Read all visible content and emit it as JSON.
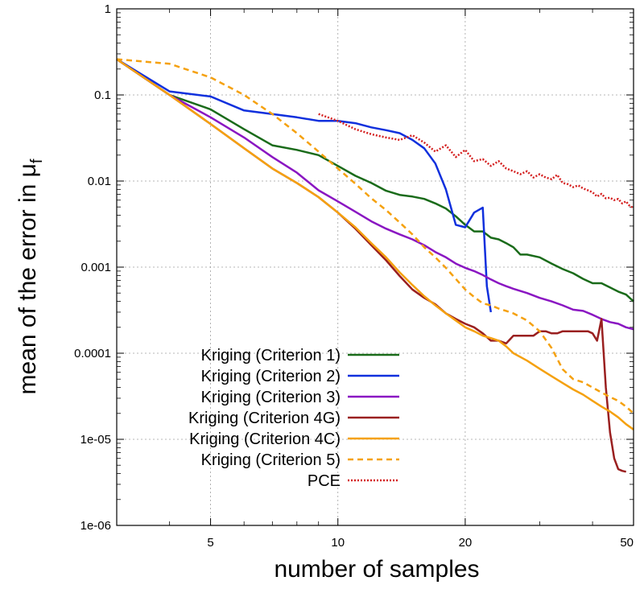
{
  "chart_data": {
    "type": "line",
    "title": "",
    "xlabel": "number of samples",
    "ylabel": "mean of the error in μ",
    "ylabel_subscript": "f",
    "xscale": "log",
    "yscale": "log",
    "xlim": [
      3,
      50
    ],
    "ylim": [
      1e-06,
      1
    ],
    "grid": true,
    "legend_position": "bottom-left",
    "x_ticks": [
      {
        "value": 5,
        "label": "5"
      },
      {
        "value": 10,
        "label": "10"
      },
      {
        "value": 20,
        "label": "20"
      },
      {
        "value": 50,
        "label": "50"
      }
    ],
    "y_ticks": [
      {
        "value": 1,
        "label": "1"
      },
      {
        "value": 0.1,
        "label": "0.1"
      },
      {
        "value": 0.01,
        "label": "0.01"
      },
      {
        "value": 0.001,
        "label": "0.001"
      },
      {
        "value": 0.0001,
        "label": "0.0001"
      },
      {
        "value": 1e-05,
        "label": "1e-05"
      },
      {
        "value": 1e-06,
        "label": "1e-06"
      }
    ],
    "series": [
      {
        "name": "Kriging (Criterion 1)",
        "color": "#1a6b1a",
        "dash": "solid",
        "x": [
          3,
          4,
          5,
          6,
          7,
          8,
          9,
          10,
          11,
          12,
          13,
          14,
          15,
          16,
          17,
          18,
          19,
          20,
          21,
          22,
          23,
          24,
          25,
          26,
          27,
          28,
          30,
          32,
          34,
          36,
          38,
          40,
          42,
          44,
          46,
          48,
          50
        ],
        "y": [
          0.26,
          0.1,
          0.068,
          0.04,
          0.026,
          0.023,
          0.02,
          0.015,
          0.0115,
          0.0095,
          0.0077,
          0.0069,
          0.0066,
          0.0062,
          0.0055,
          0.0048,
          0.0039,
          0.0031,
          0.0026,
          0.0026,
          0.0022,
          0.0021,
          0.0019,
          0.0017,
          0.0014,
          0.0014,
          0.0013,
          0.0011,
          0.00095,
          0.00085,
          0.00073,
          0.00065,
          0.00065,
          0.00058,
          0.00052,
          0.00048,
          0.0004
        ]
      },
      {
        "name": "Kriging (Criterion 2)",
        "color": "#1030dd",
        "dash": "solid",
        "x": [
          3,
          4,
          5,
          6,
          7,
          8,
          9,
          10,
          11,
          12,
          13,
          14,
          15,
          16,
          17,
          18,
          19,
          20,
          21,
          22,
          22.5,
          23
        ],
        "y": [
          0.26,
          0.11,
          0.096,
          0.066,
          0.06,
          0.055,
          0.05,
          0.05,
          0.047,
          0.042,
          0.039,
          0.036,
          0.03,
          0.024,
          0.016,
          0.008,
          0.0031,
          0.0029,
          0.0043,
          0.0049,
          0.0006,
          0.0003
        ]
      },
      {
        "name": "Kriging (Criterion 3)",
        "color": "#8a16c2",
        "dash": "solid",
        "x": [
          3,
          4,
          5,
          6,
          7,
          8,
          9,
          10,
          11,
          12,
          13,
          14,
          15,
          16,
          17,
          18,
          19,
          20,
          21,
          22,
          23,
          24,
          25,
          26,
          28,
          30,
          32,
          34,
          36,
          38,
          40,
          42,
          44,
          46,
          48,
          50
        ],
        "y": [
          0.26,
          0.1,
          0.055,
          0.032,
          0.019,
          0.0125,
          0.0078,
          0.0058,
          0.0044,
          0.0034,
          0.0028,
          0.0024,
          0.0021,
          0.0018,
          0.0015,
          0.0013,
          0.0011,
          0.00098,
          0.0009,
          0.00081,
          0.00072,
          0.00065,
          0.0006,
          0.00056,
          0.0005,
          0.00044,
          0.0004,
          0.00036,
          0.00032,
          0.00031,
          0.00028,
          0.00025,
          0.00023,
          0.00022,
          0.0002,
          0.00019
        ]
      },
      {
        "name": "Kriging (Criterion 4G)",
        "color": "#9a2020",
        "dash": "solid",
        "x": [
          3,
          4,
          5,
          6,
          7,
          8,
          9,
          10,
          11,
          12,
          13,
          14,
          15,
          16,
          17,
          18,
          19,
          20,
          21,
          22,
          23,
          24,
          25,
          26,
          27,
          28,
          29,
          30,
          31,
          32,
          33,
          34,
          35,
          36,
          37,
          38,
          39,
          40,
          41,
          42,
          43,
          44,
          45,
          46,
          47,
          48
        ],
        "y": [
          0.26,
          0.1,
          0.046,
          0.024,
          0.014,
          0.0095,
          0.0065,
          0.0043,
          0.0028,
          0.0018,
          0.0012,
          0.00079,
          0.00055,
          0.00044,
          0.00037,
          0.00029,
          0.00025,
          0.00022,
          0.0002,
          0.00017,
          0.00014,
          0.00014,
          0.00013,
          0.00016,
          0.00016,
          0.00016,
          0.00016,
          0.00018,
          0.00018,
          0.00017,
          0.00017,
          0.00018,
          0.00018,
          0.00018,
          0.00018,
          0.00018,
          0.00018,
          0.00017,
          0.00014,
          0.00025,
          4e-05,
          1.2e-05,
          6e-06,
          4.5e-06,
          4.3e-06,
          4.2e-06
        ]
      },
      {
        "name": "Kriging (Criterion 4C)",
        "color": "#f5a10f",
        "dash": "solid",
        "x": [
          3,
          4,
          5,
          6,
          7,
          8,
          9,
          10,
          11,
          12,
          13,
          14,
          15,
          16,
          17,
          18,
          19,
          20,
          21,
          22,
          23,
          24,
          25,
          26,
          28,
          30,
          32,
          34,
          36,
          38,
          40,
          42,
          44,
          46,
          48,
          50
        ],
        "y": [
          0.26,
          0.1,
          0.046,
          0.024,
          0.014,
          0.0095,
          0.0065,
          0.0043,
          0.0029,
          0.0019,
          0.0013,
          0.00087,
          0.00062,
          0.00046,
          0.00036,
          0.00029,
          0.00024,
          0.0002,
          0.00018,
          0.00016,
          0.00015,
          0.00014,
          0.00012,
          0.0001,
          8.2e-05,
          6.6e-05,
          5.4e-05,
          4.5e-05,
          3.8e-05,
          3.3e-05,
          2.8e-05,
          2.4e-05,
          2.1e-05,
          1.8e-05,
          1.5e-05,
          1.3e-05
        ]
      },
      {
        "name": "Kriging (Criterion 5)",
        "color": "#f5a10f",
        "dash": "dashed",
        "x": [
          3,
          4,
          5,
          6,
          7,
          8,
          9,
          10,
          11,
          12,
          13,
          14,
          15,
          16,
          17,
          18,
          19,
          20,
          21,
          22,
          23,
          24,
          25,
          26,
          28,
          30,
          32,
          34,
          36,
          38,
          40,
          42,
          44,
          46,
          48,
          50
        ],
        "y": [
          0.26,
          0.23,
          0.16,
          0.1,
          0.06,
          0.036,
          0.022,
          0.014,
          0.0093,
          0.0063,
          0.0046,
          0.0033,
          0.0024,
          0.0017,
          0.0013,
          0.00098,
          0.00073,
          0.00055,
          0.00045,
          0.00038,
          0.00036,
          0.00033,
          0.00031,
          0.00029,
          0.00024,
          0.00018,
          0.000115,
          6.5e-05,
          5e-05,
          4.6e-05,
          4e-05,
          3.5e-05,
          3.1e-05,
          2.8e-05,
          2.4e-05,
          2e-05
        ]
      },
      {
        "name": "PCE",
        "color": "#d42020",
        "dash": "dotted",
        "x": [
          9,
          10,
          11,
          12,
          13,
          14,
          15,
          16,
          17,
          18,
          19,
          20,
          21,
          22,
          23,
          24,
          25,
          26,
          27,
          28,
          29,
          30,
          31,
          32,
          33,
          34,
          35,
          36,
          37,
          38,
          39,
          40,
          41,
          42,
          43,
          44,
          45,
          46,
          47,
          48,
          49,
          50
        ],
        "y": [
          0.06,
          0.05,
          0.04,
          0.035,
          0.032,
          0.03,
          0.034,
          0.028,
          0.022,
          0.026,
          0.019,
          0.023,
          0.017,
          0.018,
          0.015,
          0.017,
          0.014,
          0.013,
          0.012,
          0.013,
          0.011,
          0.012,
          0.011,
          0.0105,
          0.0118,
          0.0095,
          0.0092,
          0.0085,
          0.0089,
          0.0082,
          0.0078,
          0.0074,
          0.0066,
          0.0071,
          0.0063,
          0.0064,
          0.006,
          0.0062,
          0.0055,
          0.0058,
          0.0051,
          0.0049
        ]
      }
    ]
  }
}
